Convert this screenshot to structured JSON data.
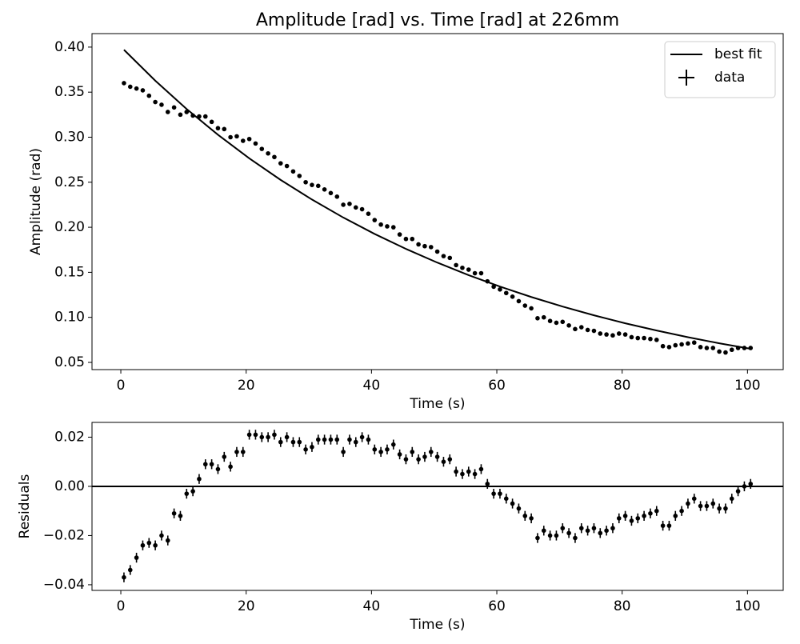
{
  "chart_data": [
    {
      "type": "errorbar",
      "title": "Amplitude [rad] vs. Time [rad]  at 226mm",
      "xlabel": "Time (s)",
      "ylabel": "Amplitude (rad)",
      "xlim": [
        -4.6,
        105.7
      ],
      "ylim": [
        0.042,
        0.415
      ],
      "xticks": [
        0,
        20,
        40,
        60,
        80,
        100
      ],
      "yticks": [
        0.05,
        {
          "value": 0.1,
          "label": "0.10"
        },
        0.15,
        {
          "value": 0.2,
          "label": "0.20"
        },
        0.25,
        {
          "value": 0.3,
          "label": "0.30"
        },
        0.35,
        {
          "value": 0.4,
          "label": "0.40"
        }
      ],
      "legend": "upper right",
      "series": [
        {
          "name": "best fit",
          "type": "line",
          "color": "#000000",
          "x": [
            0.5,
            5.5,
            10.5,
            15.5,
            20.5,
            25.5,
            30.5,
            35.5,
            40.5,
            45.5,
            50.5,
            55.5,
            60.5,
            65.5,
            70.5,
            75.5,
            80.5,
            85.5,
            90.5,
            95.5,
            100.5
          ],
          "values": [
            0.397,
            0.3627,
            0.3313,
            0.3027,
            0.2765,
            0.2526,
            0.2308,
            0.2108,
            0.1926,
            0.176,
            0.1608,
            0.1469,
            0.1342,
            0.1226,
            0.112,
            0.1023,
            0.0934,
            0.0854,
            0.078,
            0.0712,
            0.0651
          ]
        },
        {
          "name": "data",
          "type": "errorbar",
          "color": "#000000",
          "x": [
            0.5,
            1.5,
            2.5,
            3.5,
            4.5,
            5.5,
            6.5,
            7.5,
            8.5,
            9.5,
            10.5,
            11.5,
            12.5,
            13.5,
            14.5,
            15.5,
            16.5,
            17.5,
            18.5,
            19.5,
            20.5,
            21.5,
            22.5,
            23.5,
            24.5,
            25.5,
            26.5,
            27.5,
            28.5,
            29.5,
            30.5,
            31.5,
            32.5,
            33.5,
            34.5,
            35.5,
            36.5,
            37.5,
            38.5,
            39.5,
            40.5,
            41.5,
            42.5,
            43.5,
            44.5,
            45.5,
            46.5,
            47.5,
            48.5,
            49.5,
            50.5,
            51.5,
            52.5,
            53.5,
            54.5,
            55.5,
            56.5,
            57.5,
            58.5,
            59.5,
            60.5,
            61.5,
            62.5,
            63.5,
            64.5,
            65.5,
            66.5,
            67.5,
            68.5,
            69.5,
            70.5,
            71.5,
            72.5,
            73.5,
            74.5,
            75.5,
            76.5,
            77.5,
            78.5,
            79.5,
            80.5,
            81.5,
            82.5,
            83.5,
            84.5,
            85.5,
            86.5,
            87.5,
            88.5,
            89.5,
            90.5,
            91.5,
            92.5,
            93.5,
            94.5,
            95.5,
            96.5,
            97.5,
            98.5,
            99.5,
            100.5
          ],
          "values": [
            0.36,
            0.356,
            0.354,
            0.352,
            0.346,
            0.339,
            0.336,
            0.328,
            0.333,
            0.325,
            0.328,
            0.324,
            0.323,
            0.323,
            0.317,
            0.31,
            0.309,
            0.3,
            0.301,
            0.296,
            0.298,
            0.293,
            0.287,
            0.282,
            0.278,
            0.271,
            0.268,
            0.262,
            0.257,
            0.25,
            0.247,
            0.246,
            0.242,
            0.238,
            0.234,
            0.225,
            0.226,
            0.222,
            0.22,
            0.215,
            0.208,
            0.203,
            0.201,
            0.2,
            0.192,
            0.187,
            0.187,
            0.181,
            0.179,
            0.178,
            0.173,
            0.168,
            0.166,
            0.158,
            0.155,
            0.153,
            0.149,
            0.149,
            0.14,
            0.134,
            0.131,
            0.127,
            0.123,
            0.118,
            0.113,
            0.11,
            0.099,
            0.1,
            0.096,
            0.094,
            0.095,
            0.091,
            0.087,
            0.089,
            0.086,
            0.085,
            0.082,
            0.081,
            0.08,
            0.082,
            0.081,
            0.078,
            0.077,
            0.077,
            0.076,
            0.075,
            0.068,
            0.067,
            0.069,
            0.07,
            0.071,
            0.072,
            0.067,
            0.066,
            0.066,
            0.062,
            0.061,
            0.064,
            0.066,
            0.066,
            0.066
          ]
        }
      ]
    },
    {
      "type": "errorbar",
      "xlabel": "Time (s)",
      "ylabel": "Residuals",
      "xlim": [
        -4.6,
        105.7
      ],
      "ylim": [
        -0.0423,
        0.026
      ],
      "xticks": [
        0,
        20,
        40,
        60,
        80,
        100
      ],
      "yticks": [
        {
          "value": -0.04,
          "label": "−0.04"
        },
        {
          "value": -0.02,
          "label": "−0.02"
        },
        {
          "value": 0,
          "label": "0.00"
        },
        0.02
      ],
      "hline": 0,
      "series": [
        {
          "type": "errorbar",
          "color": "#000000",
          "yerr": 0.002,
          "x": [
            0.5,
            1.5,
            2.5,
            3.5,
            4.5,
            5.5,
            6.5,
            7.5,
            8.5,
            9.5,
            10.5,
            11.5,
            12.5,
            13.5,
            14.5,
            15.5,
            16.5,
            17.5,
            18.5,
            19.5,
            20.5,
            21.5,
            22.5,
            23.5,
            24.5,
            25.5,
            26.5,
            27.5,
            28.5,
            29.5,
            30.5,
            31.5,
            32.5,
            33.5,
            34.5,
            35.5,
            36.5,
            37.5,
            38.5,
            39.5,
            40.5,
            41.5,
            42.5,
            43.5,
            44.5,
            45.5,
            46.5,
            47.5,
            48.5,
            49.5,
            50.5,
            51.5,
            52.5,
            53.5,
            54.5,
            55.5,
            56.5,
            57.5,
            58.5,
            59.5,
            60.5,
            61.5,
            62.5,
            63.5,
            64.5,
            65.5,
            66.5,
            67.5,
            68.5,
            69.5,
            70.5,
            71.5,
            72.5,
            73.5,
            74.5,
            75.5,
            76.5,
            77.5,
            78.5,
            79.5,
            80.5,
            81.5,
            82.5,
            83.5,
            84.5,
            85.5,
            86.5,
            87.5,
            88.5,
            89.5,
            90.5,
            91.5,
            92.5,
            93.5,
            94.5,
            95.5,
            96.5,
            97.5,
            98.5,
            99.5,
            100.5
          ],
          "values": [
            -0.037,
            -0.034,
            -0.029,
            -0.024,
            -0.023,
            -0.024,
            -0.02,
            -0.022,
            -0.011,
            -0.012,
            -0.003,
            -0.002,
            0.003,
            0.009,
            0.009,
            0.007,
            0.012,
            0.008,
            0.014,
            0.014,
            0.021,
            0.021,
            0.02,
            0.02,
            0.021,
            0.018,
            0.02,
            0.018,
            0.018,
            0.015,
            0.016,
            0.019,
            0.019,
            0.019,
            0.019,
            0.014,
            0.019,
            0.018,
            0.02,
            0.019,
            0.015,
            0.014,
            0.015,
            0.017,
            0.013,
            0.011,
            0.014,
            0.011,
            0.012,
            0.014,
            0.012,
            0.01,
            0.011,
            0.006,
            0.005,
            0.006,
            0.005,
            0.007,
            0.001,
            -0.003,
            -0.003,
            -0.005,
            -0.007,
            -0.009,
            -0.012,
            -0.013,
            -0.021,
            -0.018,
            -0.02,
            -0.02,
            -0.017,
            -0.019,
            -0.021,
            -0.017,
            -0.018,
            -0.017,
            -0.019,
            -0.018,
            -0.017,
            -0.013,
            -0.012,
            -0.014,
            -0.013,
            -0.012,
            -0.011,
            -0.01,
            -0.016,
            -0.016,
            -0.012,
            -0.01,
            -0.007,
            -0.005,
            -0.008,
            -0.008,
            -0.007,
            -0.009,
            -0.009,
            -0.005,
            -0.002,
            0.0,
            0.001
          ]
        }
      ]
    }
  ]
}
